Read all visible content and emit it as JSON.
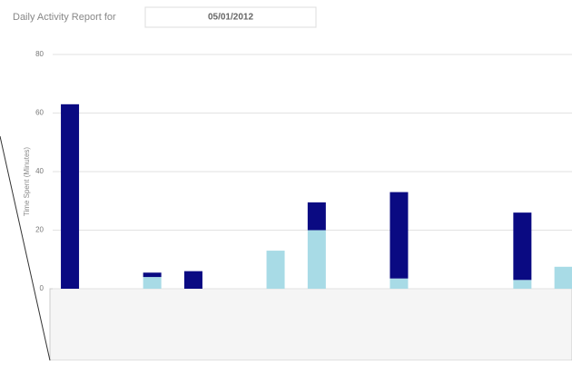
{
  "header": {
    "label": "Daily Activity Report for",
    "date": "05/01/2012"
  },
  "chart_data": {
    "type": "bar",
    "stacked": true,
    "y_label": "Time Spent (Minutes)",
    "categories": [
      null,
      null,
      null,
      null,
      null,
      null,
      null,
      null,
      null,
      null,
      null,
      null,
      null
    ],
    "series": [
      {
        "color": "#a8dbe6",
        "values": [
          0,
          0,
          4,
          0,
          0,
          13,
          20,
          0,
          3.5,
          0,
          0,
          3,
          7.5
        ]
      },
      {
        "color": "#0a0a82",
        "values": [
          63,
          0,
          1.5,
          6,
          0,
          0,
          9.5,
          0,
          29.5,
          0,
          0,
          23,
          0
        ]
      }
    ],
    "ylim": [
      0,
      80
    ],
    "yticks": [
      0,
      20,
      40,
      60,
      80
    ],
    "grid": true
  }
}
